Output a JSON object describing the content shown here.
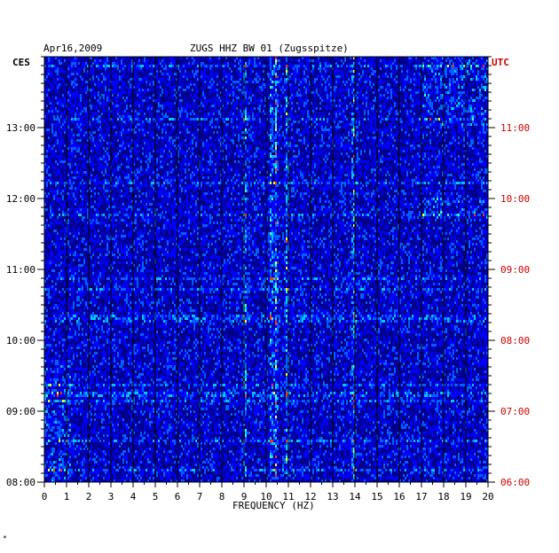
{
  "header": {
    "date": "Apr16,2009",
    "station": "ZUGS HHZ BW 01 (Zugsspitze)",
    "left_zone": "CES",
    "right_zone": "UTC"
  },
  "corner_mark": "*",
  "colors": {
    "background": "#00008b",
    "low": "#0000ff",
    "mid": "#00ffff",
    "high": "#ffff00",
    "peak": "#ff0000",
    "utc_label": "#cc0000"
  },
  "chart_data": {
    "type": "heatmap",
    "title": "ZUGS HHZ BW 01 (Zugsspitze)",
    "xlabel": "FREQUENCY (HZ)",
    "ylabel": "",
    "xlim": [
      0,
      20
    ],
    "x_ticks": [
      "0",
      "1",
      "2",
      "3",
      "4",
      "5",
      "6",
      "7",
      "8",
      "9",
      "10",
      "11",
      "12",
      "13",
      "14",
      "15",
      "16",
      "17",
      "18",
      "19",
      "20"
    ],
    "y_left_ticks": [
      "13:00",
      "12:00",
      "11:00",
      "10:00",
      "09:00",
      "08:00"
    ],
    "y_right_ticks": [
      "11:00",
      "10:00",
      "09:00",
      "08:00",
      "07:00",
      "06:00"
    ],
    "y_range_local": [
      "08:00",
      "13:54"
    ],
    "grid": true,
    "strong_bands_hz": [
      10.2,
      10.4,
      10.9,
      9.0,
      13.9
    ],
    "notes": "Spectrogram of seismic noise; time increases upward, frequency 0-20 Hz horizontally"
  }
}
